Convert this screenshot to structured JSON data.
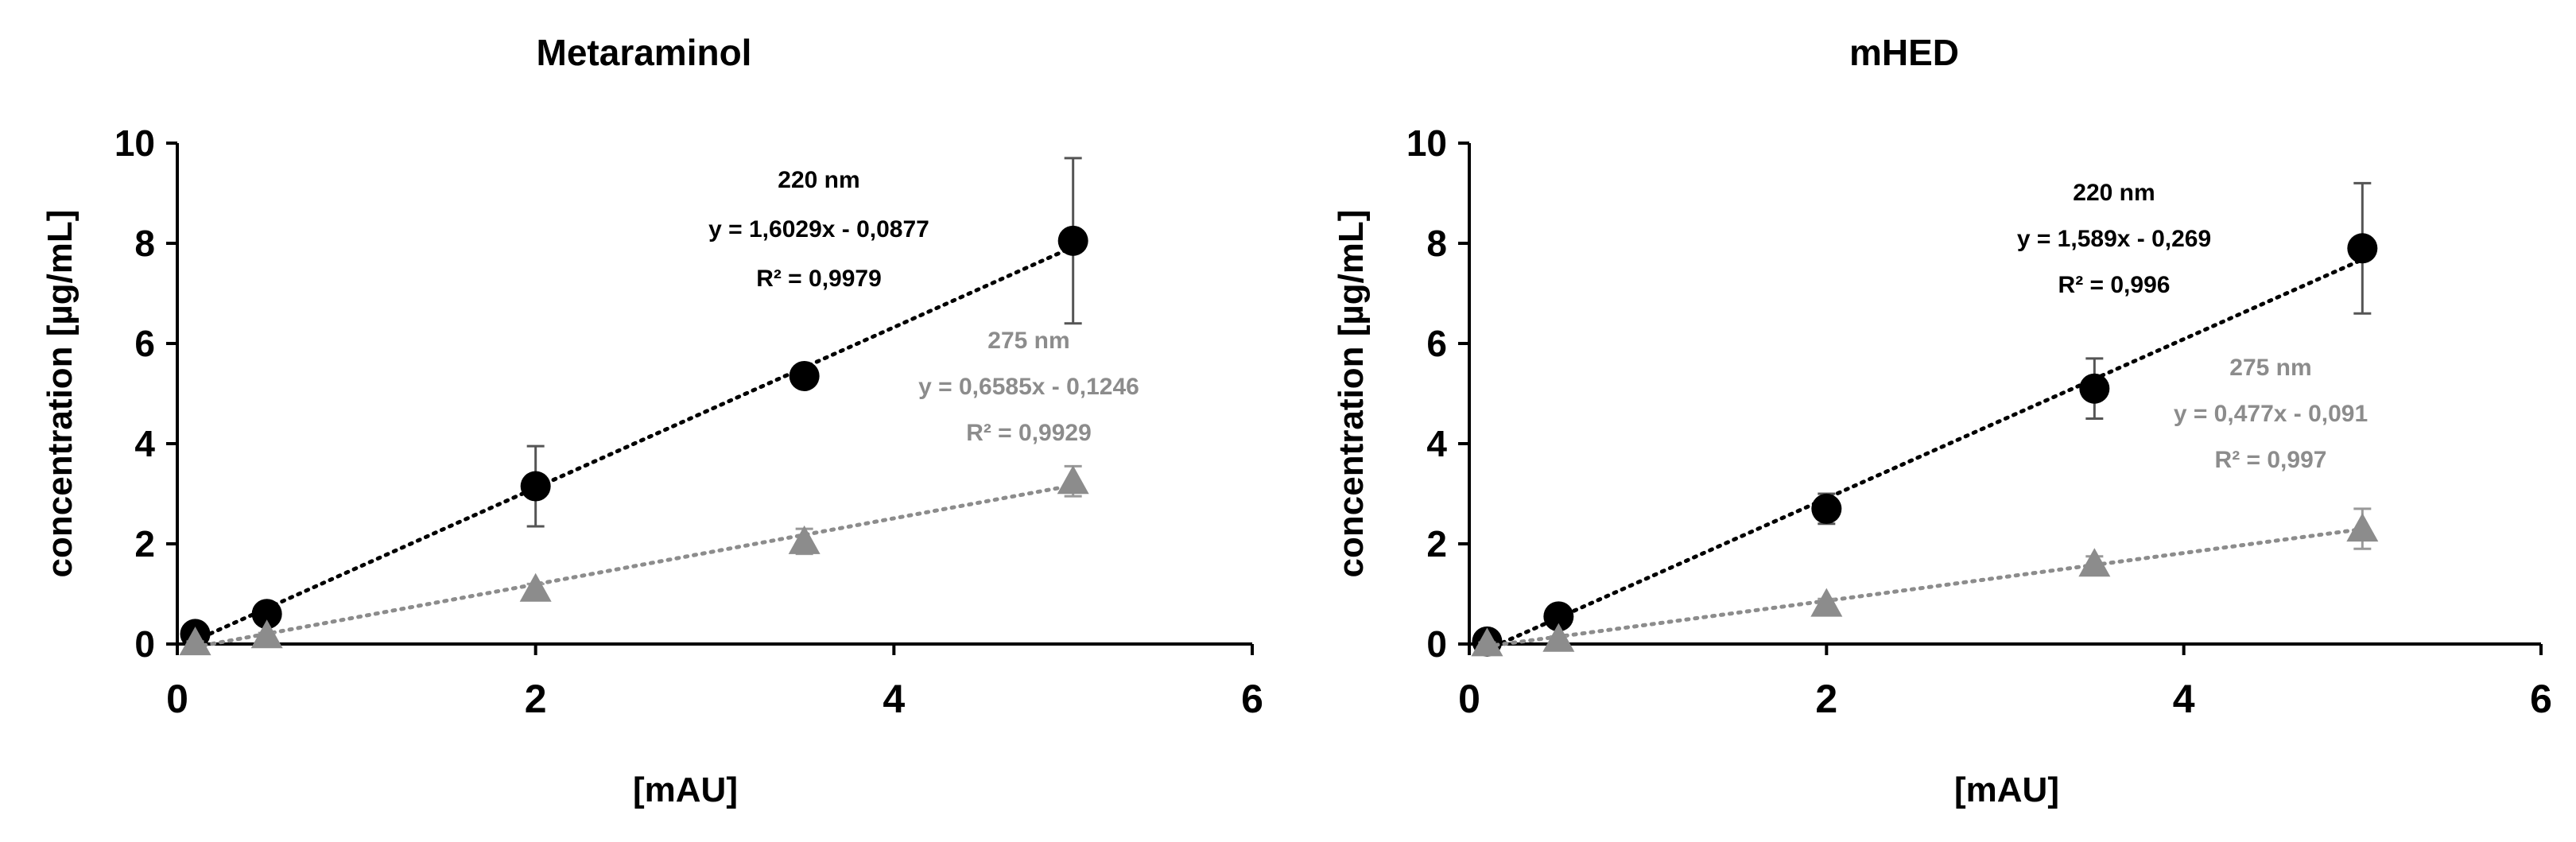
{
  "chart_data": [
    {
      "type": "scatter",
      "title": "Metaraminol",
      "xlabel": "[mAU]",
      "ylabel": "concentration [µg/mL]",
      "xlim": [
        0,
        6
      ],
      "ylim": [
        0,
        10
      ],
      "x_ticks": [
        "0",
        "2",
        "4",
        "6"
      ],
      "y_ticks": [
        "0",
        "2",
        "4",
        "6",
        "8",
        "10"
      ],
      "grid": false,
      "legend": "none",
      "series": [
        {
          "name": "220 nm",
          "color": "#000000",
          "marker": "circle",
          "trendline": "dotted linear",
          "slope": 1.6029,
          "intercept": -0.0877,
          "x": [
            0.1,
            0.5,
            2,
            3.5,
            5
          ],
          "y": [
            0.2,
            0.6,
            3.15,
            5.35,
            8.05
          ],
          "error": [
            0.05,
            0.1,
            0.8,
            0.2,
            1.65
          ],
          "annotation": [
            "220 nm",
            "y = 1,6029x - 0,0877",
            "R² = 0,9979"
          ]
        },
        {
          "name": "275 nm",
          "color": "#8c8c8c",
          "marker": "triangle",
          "trendline": "dotted linear",
          "slope": 0.6585,
          "intercept": -0.1246,
          "x": [
            0.1,
            0.5,
            2,
            3.5,
            5
          ],
          "y": [
            0.03,
            0.17,
            1.1,
            2.05,
            3.25
          ],
          "error": [
            0.02,
            0.05,
            0.1,
            0.25,
            0.3
          ],
          "annotation": [
            "275 nm",
            "y = 0,6585x - 0,1246",
            "R² = 0,9929"
          ]
        }
      ]
    },
    {
      "type": "scatter",
      "title": "mHED",
      "xlabel": "[mAU]",
      "ylabel": "concentration [µg/mL]",
      "xlim": [
        0,
        6
      ],
      "ylim": [
        0,
        10
      ],
      "x_ticks": [
        "0",
        "2",
        "4",
        "6"
      ],
      "y_ticks": [
        "0",
        "2",
        "4",
        "6",
        "8",
        "10"
      ],
      "grid": false,
      "legend": "none",
      "series": [
        {
          "name": "220 nm",
          "color": "#000000",
          "marker": "circle",
          "trendline": "dotted linear",
          "slope": 1.589,
          "intercept": -0.269,
          "x": [
            0.1,
            0.5,
            2,
            3.5,
            5
          ],
          "y": [
            0.05,
            0.55,
            2.7,
            5.1,
            7.9
          ],
          "error": [
            0.05,
            0.1,
            0.3,
            0.6,
            1.3
          ],
          "annotation": [
            "220 nm",
            "y = 1,589x - 0,269",
            "R² = 0,996"
          ]
        },
        {
          "name": "275 nm",
          "color": "#8c8c8c",
          "marker": "triangle",
          "trendline": "dotted linear",
          "slope": 0.477,
          "intercept": -0.091,
          "x": [
            0.1,
            0.5,
            2,
            3.5,
            5
          ],
          "y": [
            0.01,
            0.1,
            0.8,
            1.6,
            2.3
          ],
          "error": [
            0.02,
            0.05,
            0.1,
            0.15,
            0.4
          ],
          "annotation": [
            "275 nm",
            "y = 0,477x - 0,091",
            "R² = 0,997"
          ]
        }
      ]
    }
  ]
}
